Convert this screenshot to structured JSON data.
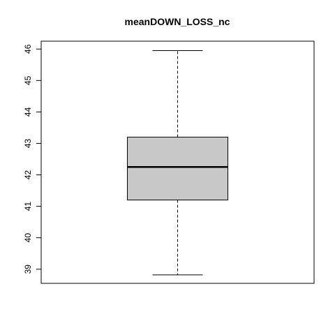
{
  "chart_data": {
    "type": "boxplot",
    "title": "meanDOWN_LOSS_nc",
    "xlabel": "",
    "ylabel": "",
    "ylim": [
      38.55,
      46.25
    ],
    "y_ticks": [
      "39",
      "40",
      "41",
      "42",
      "43",
      "44",
      "45",
      "46"
    ],
    "box": {
      "min": 38.82,
      "q1": 41.2,
      "median": 42.25,
      "q3": 43.2,
      "max": 45.95
    },
    "box_fill": "#c8c8c8",
    "grid": false,
    "orientation": "vertical"
  }
}
